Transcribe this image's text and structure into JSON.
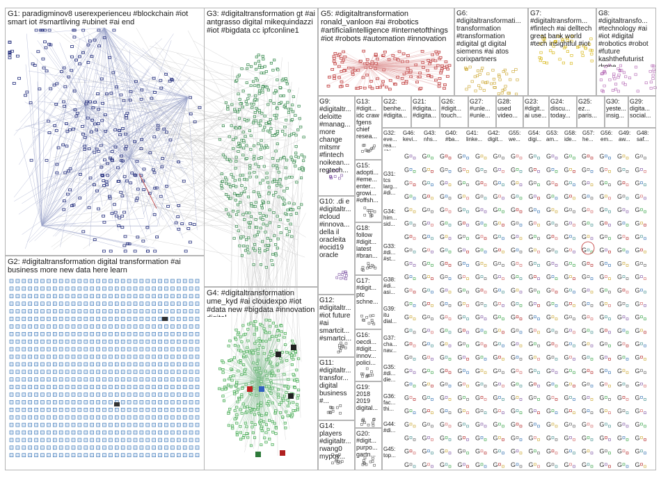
{
  "groups": [
    {
      "id": "G1",
      "label": "G1: paradigminov8 userexperienceu #blockchain #iot smart iot #smartliving #ubinet #ai end",
      "color": "#1f2a7a"
    },
    {
      "id": "G2",
      "label": "G2: #digitaltransformation digital transformation #ai business more new data here learn",
      "color": "#2b6cb0"
    },
    {
      "id": "G3",
      "label": "G3: #digitaltransformation gt #ai antgrasso digital mikequindazzi #iot #bigdata cc ipfconline1",
      "color": "#1e7a3a"
    },
    {
      "id": "G4",
      "label": "G4: #digitaltransformation ume_kyd #ai cloudexpo #iot #data new #bigdata #innovation digital",
      "color": "#2e9e3e"
    },
    {
      "id": "G5",
      "label": "G5: #digitaltransformation ronald_vanloon #ai #robotics #artificialintelligence #internetofthings #iot #robots #automation #innovation",
      "color": "#b01818"
    },
    {
      "id": "G6",
      "label": "G6: #digitaltransformati... transformation #transformation #digital gt digital siemens #ai atos corixpartners",
      "color": "#c9a227"
    },
    {
      "id": "G7",
      "label": "G7: #digitaltransform... #fintech #ai delltech great bank world #tech insightful #iot",
      "color": "#d4b000"
    },
    {
      "id": "G8",
      "label": "G8: #digitaltransfo... #technology #ai #iot #digital #robotics #robot #future kashthefuturist drone",
      "color": "#b060b0"
    },
    {
      "id": "G9",
      "label": "G9: #digitaltr... deloitte #manag... more change mitsmr #fintech noikean... regtech...",
      "color": "#7a4fa0"
    },
    {
      "id": "G10",
      "label": "G10: .di e #digitaltr... #cloud #innova... della il oracleita #ocid19 oracle",
      "color": "#7a4fa0"
    },
    {
      "id": "G11",
      "label": "G11: #digitaltr... transfor... digital business #...",
      "color": "#555555"
    },
    {
      "id": "G12",
      "label": "G12: #digitaltr... #iot future #ai smartcit... #smartci...",
      "color": "#555555"
    },
    {
      "id": "G13",
      "label": "G13: #digit... idc craw fgens chief resea...",
      "color": "#555555"
    },
    {
      "id": "G14",
      "label": "G14: players #digitaltr... rwang0 mypov...",
      "color": "#555555"
    },
    {
      "id": "G15",
      "label": "G15: adopti... #eme... enter... growi... #offsh...",
      "color": "#555555"
    },
    {
      "id": "G16",
      "label": "G16: oecdi... #digit... innov... polici...",
      "color": "#555555"
    },
    {
      "id": "G17",
      "label": "G17: #digit... ptc schne...",
      "color": "#555555"
    },
    {
      "id": "G18",
      "label": "G18: follow #digit... latest #bran...",
      "color": "#555555"
    },
    {
      "id": "G19",
      "label": "G19: 2018 2019 digital...",
      "color": "#555555"
    },
    {
      "id": "G20",
      "label": "G20: #digit... purpo... gartn...",
      "color": "#555555"
    },
    {
      "id": "G21",
      "label": "G21: #digita... #digita...",
      "color": "#555555"
    },
    {
      "id": "G22",
      "label": "G22: benhe... #digita...",
      "color": "#555555"
    },
    {
      "id": "G23",
      "label": "G23: #digit... ai use...",
      "color": "#555555"
    },
    {
      "id": "G24",
      "label": "G24: discu... today...",
      "color": "#555555"
    },
    {
      "id": "G25",
      "label": "G25: ez... paris...",
      "color": "#555555"
    },
    {
      "id": "G26",
      "label": "G26: #digit... touch...",
      "color": "#555555"
    },
    {
      "id": "G27",
      "label": "G27: #unle... #unle...",
      "color": "#555555"
    },
    {
      "id": "G28",
      "label": "G28: used video...",
      "color": "#555555"
    },
    {
      "id": "G29",
      "label": "G29: digita... social...",
      "color": "#555555"
    },
    {
      "id": "G30",
      "label": "G30: yeste... insig...",
      "color": "#555555"
    }
  ],
  "small_groups": [
    {
      "label": "G32: eve... rea... #bi..."
    },
    {
      "label": "G46: kevi..."
    },
    {
      "label": "G43: nhs..."
    },
    {
      "label": "G40: #ba..."
    },
    {
      "label": "G41: linke..."
    },
    {
      "label": "G42: digit..."
    },
    {
      "label": "G55: we..."
    },
    {
      "label": "G54: digi..."
    },
    {
      "label": "G53: am..."
    },
    {
      "label": "G58: ide..."
    },
    {
      "label": "G57: he..."
    },
    {
      "label": "G56: em..."
    },
    {
      "label": "G49: aw..."
    },
    {
      "label": "G48: saf..."
    },
    {
      "label": "G31: tcs larg... #di..."
    },
    {
      "label": "G34: him... sid..."
    },
    {
      "label": "G33: #di... #st..."
    },
    {
      "label": "G38: #di... asi..."
    },
    {
      "label": "G39: itu dial..."
    },
    {
      "label": "G37: cha... nav..."
    },
    {
      "label": "G35: #di... die..."
    },
    {
      "label": "G36: fac... thi..."
    },
    {
      "label": "G44: #di..."
    },
    {
      "label": "G45: top..."
    }
  ]
}
